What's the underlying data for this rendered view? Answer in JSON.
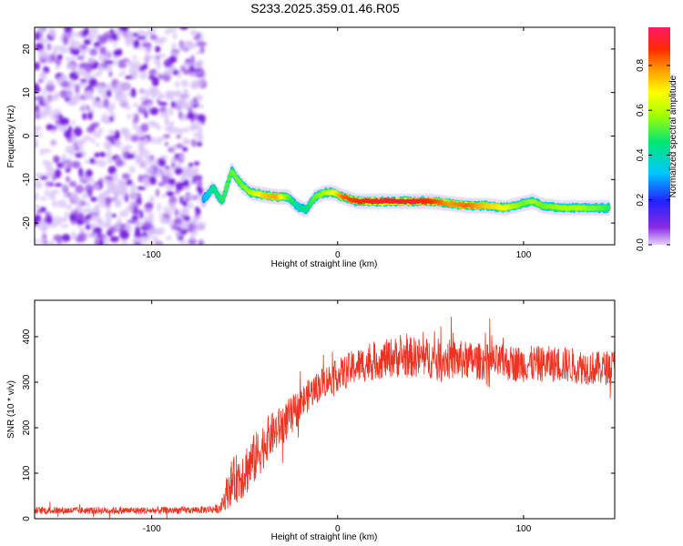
{
  "figure_title": "S233.2025.359.01.46.R05",
  "colors": {
    "snr_line": "#ee3322",
    "noise_blob": "#8a2be2",
    "signal_core": "#ff2255"
  },
  "chart_data": [
    {
      "type": "heatmap",
      "xlabel": "Height of straight line (km)",
      "ylabel": "Frequency (Hz)",
      "xlim": [
        -163,
        149
      ],
      "ylim": [
        -25,
        25
      ],
      "xticks": [
        -100,
        0,
        100
      ],
      "yticks": [
        -20,
        -10,
        0,
        10,
        20
      ],
      "colorbar": {
        "label": "Normalized spectral amplitude",
        "range": [
          0,
          0.97
        ],
        "ticks": [
          0.0,
          0.2,
          0.4,
          0.6,
          0.8
        ],
        "colormap": "rainbow (purple-blue-cyan-green-yellow-orange-red-pink)"
      },
      "noise_region": {
        "x_range": [
          -163,
          -72
        ],
        "f_range": [
          -25,
          25
        ]
      },
      "signal_trace": {
        "x": [
          -72,
          -67,
          -62,
          -57,
          -52,
          -47,
          -40,
          -33,
          -27,
          -22,
          -17,
          -12,
          -7,
          -2,
          3,
          10,
          20,
          30,
          40,
          50,
          60,
          70,
          80,
          90,
          95,
          100,
          105,
          110,
          120,
          130,
          140,
          146
        ],
        "frequency": [
          -14.5,
          -12,
          -15,
          -8,
          -11,
          -13,
          -13.5,
          -14,
          -14,
          -16,
          -17,
          -14,
          -13,
          -13,
          -14,
          -15,
          -15,
          -15,
          -15,
          -15,
          -15.5,
          -16,
          -16,
          -16.5,
          -16,
          -15.5,
          -15,
          -16,
          -16.5,
          -16.5,
          -16.5,
          -16.5
        ],
        "amplitude": [
          0.3,
          0.45,
          0.5,
          0.55,
          0.55,
          0.6,
          0.75,
          0.8,
          0.55,
          0.4,
          0.45,
          0.55,
          0.6,
          0.7,
          0.85,
          0.9,
          0.95,
          0.95,
          0.95,
          0.9,
          0.8,
          0.85,
          0.75,
          0.7,
          0.6,
          0.55,
          0.6,
          0.55,
          0.6,
          0.6,
          0.55,
          0.5
        ]
      }
    },
    {
      "type": "line",
      "xlabel": "Height of straight line (km)",
      "ylabel": "SNR (10 * v/v)",
      "xlim": [
        -163,
        149
      ],
      "ylim": [
        0,
        480
      ],
      "xticks": [
        -100,
        0,
        100
      ],
      "yticks": [
        0,
        100,
        200,
        300,
        400
      ],
      "series": [
        {
          "name": "SNR",
          "envelope_x": [
            -163,
            -130,
            -100,
            -75,
            -63,
            -58,
            -50,
            -43,
            -38,
            -30,
            -22,
            -15,
            -8,
            0,
            10,
            20,
            30,
            40,
            60,
            80,
            100,
            120,
            140,
            149
          ],
          "envelope_mean": [
            18,
            18,
            18,
            19,
            22,
            75,
            105,
            140,
            175,
            205,
            240,
            275,
            300,
            315,
            335,
            345,
            355,
            355,
            350,
            345,
            340,
            340,
            330,
            335
          ],
          "envelope_spread": [
            8,
            8,
            8,
            8,
            10,
            50,
            60,
            55,
            50,
            45,
            40,
            35,
            35,
            35,
            40,
            40,
            45,
            45,
            45,
            40,
            40,
            40,
            38,
            38
          ]
        }
      ]
    }
  ]
}
